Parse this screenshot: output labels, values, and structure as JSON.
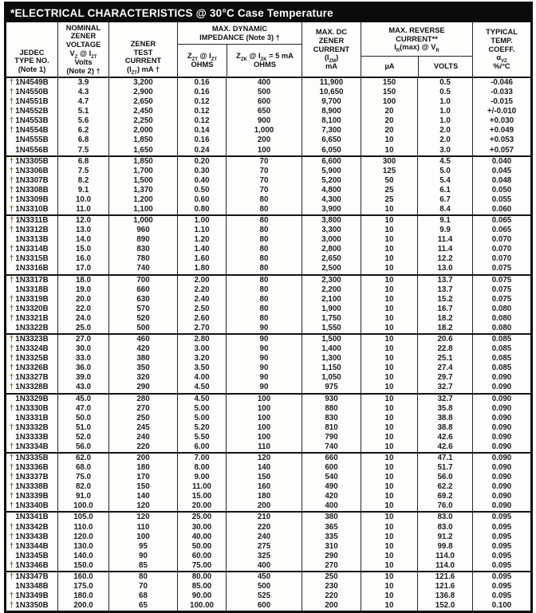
{
  "title": "*ELECTRICAL CHARACTERISTICS @ 30°C Case Temperature",
  "header": {
    "jedec": {
      "lines": [
        "JEDEC",
        "TYPE NO.",
        "(Note 1)"
      ]
    },
    "vz": {
      "lines": [
        "NOMINAL",
        "ZENER",
        "VOLTAGE"
      ],
      "sym": "V~Z~ @ I~ZT~",
      "lines2": [
        "Volts",
        "(Note 2) †"
      ]
    },
    "izt": {
      "lines": [
        "ZENER",
        "TEST",
        "CURRENT"
      ],
      "sym": "(I~ZT~) mA †"
    },
    "dyn": {
      "top": [
        "MAX. DYNAMIC",
        "IMPEDANCE (Note 3) †"
      ],
      "sub1_sym": "Z~ZT~ @ I~ZT~",
      "sub1_unit": "OHMS",
      "sub2_sym": "Z~ZK~ @ I~ZK~ = 5 mA",
      "sub2_unit": "OHMS"
    },
    "izm": {
      "lines": [
        "MAX. DC",
        "ZENER",
        "CURRENT"
      ],
      "sym": "(I~ZM~)",
      "unit": "mA"
    },
    "rev": {
      "top": [
        "MAX. REVERSE",
        "CURRENT**"
      ],
      "sym": "I~R~(max) @ V~R~",
      "sub1": "µA",
      "sub2": "VOLTS"
    },
    "coeff": {
      "lines": [
        "TYPICAL",
        "TEMP.",
        "COEFF."
      ],
      "sym": "α~VZ~",
      "unit": "%/°C"
    }
  },
  "groups": [
    {
      "rows": [
        [
          "†",
          "1N4549B",
          "3.9",
          "3,200",
          "0.16",
          "400",
          "11,900",
          "150",
          "0.5",
          "-0.046"
        ],
        [
          "†",
          "1N4550B",
          "4.3",
          "2,900",
          "0.16",
          "500",
          "10,650",
          "150",
          "0.5",
          "-0.033"
        ],
        [
          "†",
          "1N4551B",
          "4.7",
          "2,650",
          "0.12",
          "600",
          "9,700",
          "100",
          "1.0",
          "-0.015"
        ],
        [
          "†",
          "1N4552B",
          "5.1",
          "2,450",
          "0.12",
          "650",
          "8,900",
          "20",
          "1.0",
          "+/-0.010"
        ],
        [
          "†",
          "1N4553B",
          "5.6",
          "2,250",
          "0.12",
          "900",
          "8,100",
          "20",
          "1.0",
          "+0.030"
        ],
        [
          "†",
          "1N4554B",
          "6.2",
          "2,000",
          "0.14",
          "1,000",
          "7,300",
          "20",
          "2.0",
          "+0.049"
        ],
        [
          "",
          "1N4555B",
          "6.8",
          "1,850",
          "0.16",
          "200",
          "6,650",
          "10",
          "2.0",
          "+0.053"
        ],
        [
          "",
          "1N4556B",
          "7.5",
          "1,650",
          "0.24",
          "100",
          "6,050",
          "10",
          "3.0",
          "+0.057"
        ]
      ]
    },
    {
      "rows": [
        [
          "†",
          "1N3305B",
          "6.8",
          "1,850",
          "0.20",
          "70",
          "6,600",
          "300",
          "4.5",
          "0.040"
        ],
        [
          "†",
          "1N3306B",
          "7.5",
          "1,700",
          "0.30",
          "70",
          "5,900",
          "125",
          "5.0",
          "0.045"
        ],
        [
          "†",
          "1N3307B",
          "8.2",
          "1,500",
          "0.40",
          "70",
          "5,200",
          "50",
          "5.4",
          "0.048"
        ],
        [
          "†",
          "1N3308B",
          "9.1",
          "1,370",
          "0.50",
          "70",
          "4,800",
          "25",
          "6.1",
          "0.050"
        ],
        [
          "†",
          "1N3309B",
          "10.0",
          "1,200",
          "0.60",
          "80",
          "4,300",
          "25",
          "6.7",
          "0.055"
        ],
        [
          "†",
          "1N3310B",
          "11.0",
          "1,100",
          "0.80",
          "80",
          "3,900",
          "10",
          "8.4",
          "0.060"
        ]
      ]
    },
    {
      "rows": [
        [
          "†",
          "1N3311B",
          "12.0",
          "1,000",
          "1.00",
          "80",
          "3,800",
          "10",
          "9.1",
          "0.065"
        ],
        [
          "†",
          "1N3312B",
          "13.0",
          "960",
          "1.10",
          "80",
          "3,300",
          "10",
          "9.9",
          "0.065"
        ],
        [
          "",
          "1N3313B",
          "14.0",
          "890",
          "1.20",
          "80",
          "3,000",
          "10",
          "11.4",
          "0.070"
        ],
        [
          "†",
          "1N3314B",
          "15.0",
          "830",
          "1.40",
          "80",
          "2,800",
          "10",
          "11.4",
          "0.070"
        ],
        [
          "†",
          "1N3315B",
          "16.0",
          "780",
          "1.60",
          "80",
          "2,650",
          "10",
          "12.2",
          "0.070"
        ],
        [
          "",
          "1N3316B",
          "17.0",
          "740",
          "1.80",
          "80",
          "2,500",
          "10",
          "13.0",
          "0.075"
        ]
      ]
    },
    {
      "rows": [
        [
          "†",
          "1N3317B",
          "18.0",
          "700",
          "2.00",
          "80",
          "2,300",
          "10",
          "13.7",
          "0.075"
        ],
        [
          "",
          "1N3318B",
          "19.0",
          "660",
          "2.20",
          "80",
          "2,200",
          "10",
          "13.7",
          "0.075"
        ],
        [
          "†",
          "1N3319B",
          "20.0",
          "630",
          "2.40",
          "80",
          "2,100",
          "10",
          "15.2",
          "0.075"
        ],
        [
          "†",
          "1N3320B",
          "22.0",
          "570",
          "2.50",
          "80",
          "1,900",
          "10",
          "16.7",
          "0.080"
        ],
        [
          "†",
          "1N3321B",
          "24.0",
          "520",
          "2.60",
          "80",
          "1,750",
          "10",
          "18.2",
          "0.080"
        ],
        [
          "",
          "1N3322B",
          "25.0",
          "500",
          "2.70",
          "90",
          "1,550",
          "10",
          "18.2",
          "0.080"
        ]
      ]
    },
    {
      "rows": [
        [
          "†",
          "1N3323B",
          "27.0",
          "460",
          "2.80",
          "90",
          "1,500",
          "10",
          "20.6",
          "0.085"
        ],
        [
          "†",
          "1N3324B",
          "30.0",
          "420",
          "3.00",
          "90",
          "1,400",
          "10",
          "22.8",
          "0.085"
        ],
        [
          "†",
          "1N3325B",
          "33.0",
          "380",
          "3.20",
          "90",
          "1,300",
          "10",
          "25.1",
          "0.085"
        ],
        [
          "†",
          "1N3326B",
          "36.0",
          "350",
          "3.50",
          "90",
          "1,150",
          "10",
          "27.4",
          "0.085"
        ],
        [
          "†",
          "1N3327B",
          "39.0",
          "320",
          "4.00",
          "90",
          "1,050",
          "10",
          "29.7",
          "0.090"
        ],
        [
          "†",
          "1N3328B",
          "43.0",
          "290",
          "4.50",
          "90",
          "975",
          "10",
          "32.7",
          "0.090"
        ]
      ]
    },
    {
      "rows": [
        [
          "",
          "1N3329B",
          "45.0",
          "280",
          "4.50",
          "100",
          "930",
          "10",
          "32.7",
          "0.090"
        ],
        [
          "†",
          "1N3330B",
          "47.0",
          "270",
          "5.00",
          "100",
          "880",
          "10",
          "35.8",
          "0.090"
        ],
        [
          "",
          "1N3331B",
          "50.0",
          "250",
          "5.00",
          "100",
          "830",
          "10",
          "38.8",
          "0.090"
        ],
        [
          "†",
          "1N3332B",
          "51.0",
          "245",
          "5.20",
          "100",
          "810",
          "10",
          "38.8",
          "0.090"
        ],
        [
          "",
          "1N3333B",
          "52.0",
          "240",
          "5.50",
          "100",
          "790",
          "10",
          "42.6",
          "0.090"
        ],
        [
          "†",
          "1N3334B",
          "56.0",
          "220",
          "6.00",
          "110",
          "740",
          "10",
          "42.6",
          "0.090"
        ]
      ]
    },
    {
      "rows": [
        [
          "†",
          "1N3335B",
          "62.0",
          "200",
          "7.00",
          "120",
          "660",
          "10",
          "47.1",
          "0.090"
        ],
        [
          "†",
          "1N3336B",
          "68.0",
          "180",
          "8.00",
          "140",
          "600",
          "10",
          "51.7",
          "0.090"
        ],
        [
          "†",
          "1N3337B",
          "75.0",
          "170",
          "9.00",
          "150",
          "540",
          "10",
          "56.0",
          "0.090"
        ],
        [
          "†",
          "1N3338B",
          "82.0",
          "150",
          "11.00",
          "160",
          "490",
          "10",
          "62.2",
          "0.090"
        ],
        [
          "†",
          "1N3339B",
          "91.0",
          "140",
          "15.00",
          "180",
          "420",
          "10",
          "69.2",
          "0.090"
        ],
        [
          "†",
          "1N3340B",
          "100.0",
          "120",
          "20.00",
          "200",
          "400",
          "10",
          "76.0",
          "0.090"
        ]
      ]
    },
    {
      "rows": [
        [
          "",
          "1N3341B",
          "105.0",
          "120",
          "25.00",
          "210",
          "380",
          "10",
          "83.0",
          "0.095"
        ],
        [
          "†",
          "1N3342B",
          "110.0",
          "110",
          "30.00",
          "220",
          "365",
          "10",
          "83.0",
          "0.095"
        ],
        [
          "†",
          "1N3343B",
          "120.0",
          "100",
          "40.00",
          "240",
          "335",
          "10",
          "91.2",
          "0.095"
        ],
        [
          "†",
          "1N3344B",
          "130.0",
          "95",
          "50.00",
          "275",
          "310",
          "10",
          "99.8",
          "0.095"
        ],
        [
          "",
          "1N3345B",
          "140.0",
          "90",
          "60.00",
          "325",
          "290",
          "10",
          "114.0",
          "0.095"
        ],
        [
          "†",
          "1N3346B",
          "150.0",
          "85",
          "75.00",
          "400",
          "270",
          "10",
          "114.0",
          "0.095"
        ]
      ]
    },
    {
      "rows": [
        [
          "†",
          "1N3347B",
          "160.0",
          "80",
          "80.00",
          "450",
          "250",
          "10",
          "121.6",
          "0.095"
        ],
        [
          "",
          "1N3348B",
          "175.0",
          "70",
          "85.00",
          "500",
          "230",
          "10",
          "121.6",
          "0.095"
        ],
        [
          "†",
          "1N3349B",
          "180.0",
          "68",
          "90.00",
          "525",
          "220",
          "10",
          "136.8",
          "0.095"
        ],
        [
          "†",
          "1N3350B",
          "200.0",
          "65",
          "100.00",
          "600",
          "200",
          "10",
          "152.0",
          "0.100"
        ]
      ]
    }
  ]
}
